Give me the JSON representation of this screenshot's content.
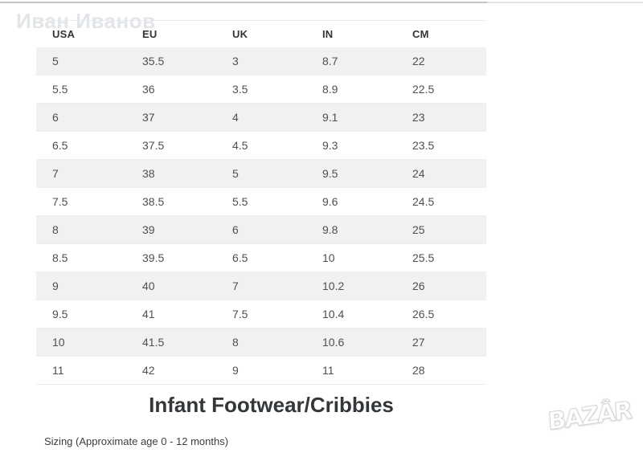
{
  "watermarks": {
    "owner_name": "Иван Иванов",
    "logo_text": "BAZÂR"
  },
  "size_table": {
    "columns": [
      "USA",
      "EU",
      "UK",
      "IN",
      "CM"
    ],
    "rows": [
      [
        "5",
        "35.5",
        "3",
        "8.7",
        "22"
      ],
      [
        "5.5",
        "36",
        "3.5",
        "8.9",
        "22.5"
      ],
      [
        "6",
        "37",
        "4",
        "9.1",
        "23"
      ],
      [
        "6.5",
        "37.5",
        "4.5",
        "9.3",
        "23.5"
      ],
      [
        "7",
        "38",
        "5",
        "9.5",
        "24"
      ],
      [
        "7.5",
        "38.5",
        "5.5",
        "9.6",
        "24.5"
      ],
      [
        "8",
        "39",
        "6",
        "9.8",
        "25"
      ],
      [
        "8.5",
        "39.5",
        "6.5",
        "10",
        "25.5"
      ],
      [
        "9",
        "40",
        "7",
        "10.2",
        "26"
      ],
      [
        "9.5",
        "41",
        "7.5",
        "10.4",
        "26.5"
      ],
      [
        "10",
        "41.5",
        "8",
        "10.6",
        "27"
      ],
      [
        "11",
        "42",
        "9",
        "11",
        "28"
      ]
    ]
  },
  "section": {
    "title": "Infant Footwear/Cribbies",
    "subtitle": "Sizing (Approximate age 0 - 12 months)"
  },
  "colors": {
    "row_stripe": "#f1f1f1",
    "row_border": "#ececec",
    "header_text": "#333333",
    "cell_text": "#4f4f4f",
    "title_text": "#33373a",
    "owner_watermark": "#e2e6e9",
    "logo_fill": "#ffffff",
    "logo_outline": "#d6d6d6",
    "top_line": "#c6c6c6"
  }
}
